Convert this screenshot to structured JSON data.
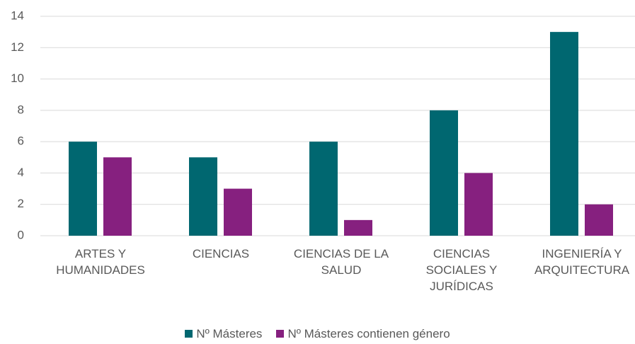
{
  "chart_data": {
    "type": "bar",
    "categories": [
      "ARTES Y HUMANIDADES",
      "CIENCIAS",
      "CIENCIAS DE LA SALUD",
      "CIENCIAS SOCIALES Y JURÍDICAS",
      "INGENIERÍA Y ARQUITECTURA"
    ],
    "series": [
      {
        "name": "Nº Másteres",
        "color": "#006770",
        "values": [
          6,
          5,
          6,
          8,
          13
        ]
      },
      {
        "name": "Nº Másteres contienen género",
        "color": "#86207f",
        "values": [
          5,
          3,
          1,
          4,
          2
        ]
      }
    ],
    "ylim": [
      0,
      14
    ],
    "yticks": [
      0,
      2,
      4,
      6,
      8,
      10,
      12,
      14
    ],
    "grid": true,
    "legend": "bottom"
  }
}
